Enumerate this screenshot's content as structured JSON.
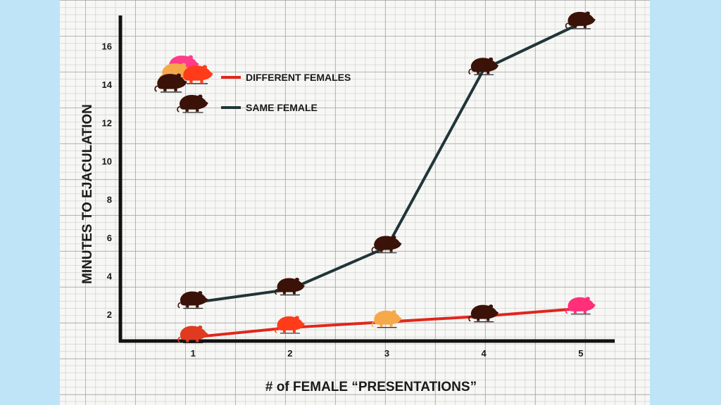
{
  "chart_data": {
    "type": "line",
    "title": "",
    "xlabel": "# of FEMALE “PRESENTATIONS”",
    "ylabel": "MINUTES TO EJACULATION",
    "x": [
      1,
      2,
      3,
      4,
      5
    ],
    "xlim": [
      0.25,
      5.35
    ],
    "ylim": [
      0.6,
      17.6
    ],
    "yticks": [
      2,
      4,
      6,
      8,
      10,
      12,
      14,
      16
    ],
    "grid": true,
    "legend_position": "top-left",
    "series": [
      {
        "name": "DIFFERENT FEMALES",
        "color": "#e1261b",
        "values": [
          0.8,
          1.3,
          1.6,
          1.9,
          2.3
        ],
        "marker_colors": [
          "#e03a20",
          "#ff3b1a",
          "#f5a94a",
          "#3a1208",
          "#ff2f7a"
        ]
      },
      {
        "name": "SAME FEMALE",
        "color": "#203538",
        "values": [
          2.6,
          3.3,
          5.5,
          14.8,
          17.2
        ],
        "marker_colors": [
          "#3a1208",
          "#3a1208",
          "#3a1208",
          "#3a1208",
          "#3a1208"
        ]
      }
    ]
  },
  "icons": {
    "marker": "rat-icon",
    "legend_cluster_colors": [
      "#ff3b8a",
      "#f5a94a",
      "#ff3b1a",
      "#3a1208"
    ]
  }
}
